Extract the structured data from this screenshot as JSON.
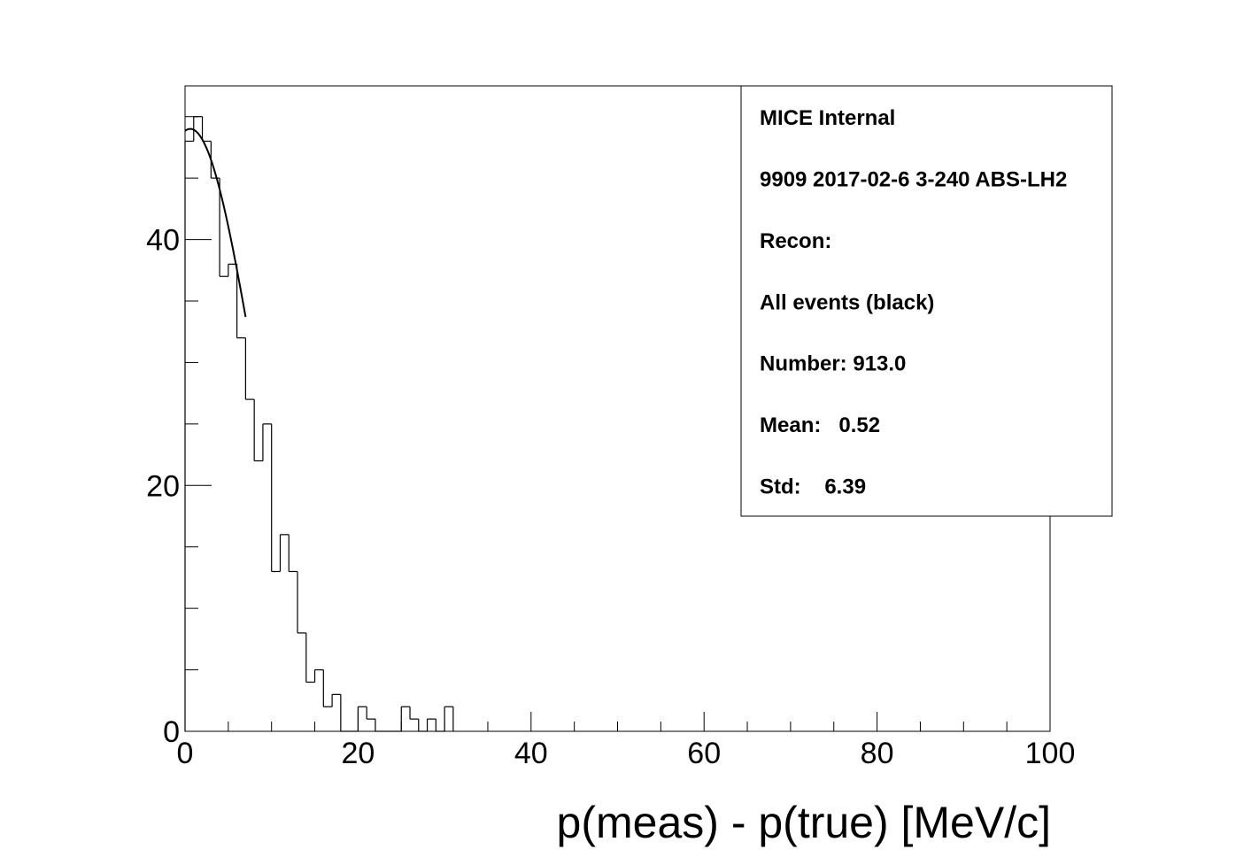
{
  "chart_data": {
    "type": "histogram",
    "title": "",
    "xlabel": "p(meas) - p(true) [MeV/c]",
    "ylabel": "",
    "xlim": [
      0,
      100
    ],
    "ylim": [
      0,
      52.5
    ],
    "x_ticks": [
      0,
      20,
      40,
      60,
      80,
      100
    ],
    "y_ticks": [
      0,
      20,
      40
    ],
    "bin_width": 1,
    "bin_edges_start": 0,
    "counts": [
      48,
      50,
      48,
      45,
      37,
      38,
      32,
      27,
      22,
      25,
      13,
      16,
      13,
      8,
      4,
      5,
      2,
      3,
      0,
      0,
      2,
      1,
      0,
      0,
      0,
      2,
      1,
      0,
      1,
      0,
      2
    ],
    "fit_curve": {
      "type": "gaussian",
      "mean": 0.6,
      "sigma": 7.4,
      "amplitude": 49.0,
      "x_range": [
        0,
        7
      ]
    },
    "stats_box": {
      "lines": [
        "MICE Internal",
        "9909 2017-02-6 3-240 ABS-LH2",
        "Recon:",
        "All events (black)",
        "Number: 913.0",
        "Mean:   0.52",
        "Std:    6.39"
      ],
      "placement": "top-right"
    },
    "grid": false,
    "colors": {
      "line": "#000000",
      "background": "#ffffff"
    }
  }
}
